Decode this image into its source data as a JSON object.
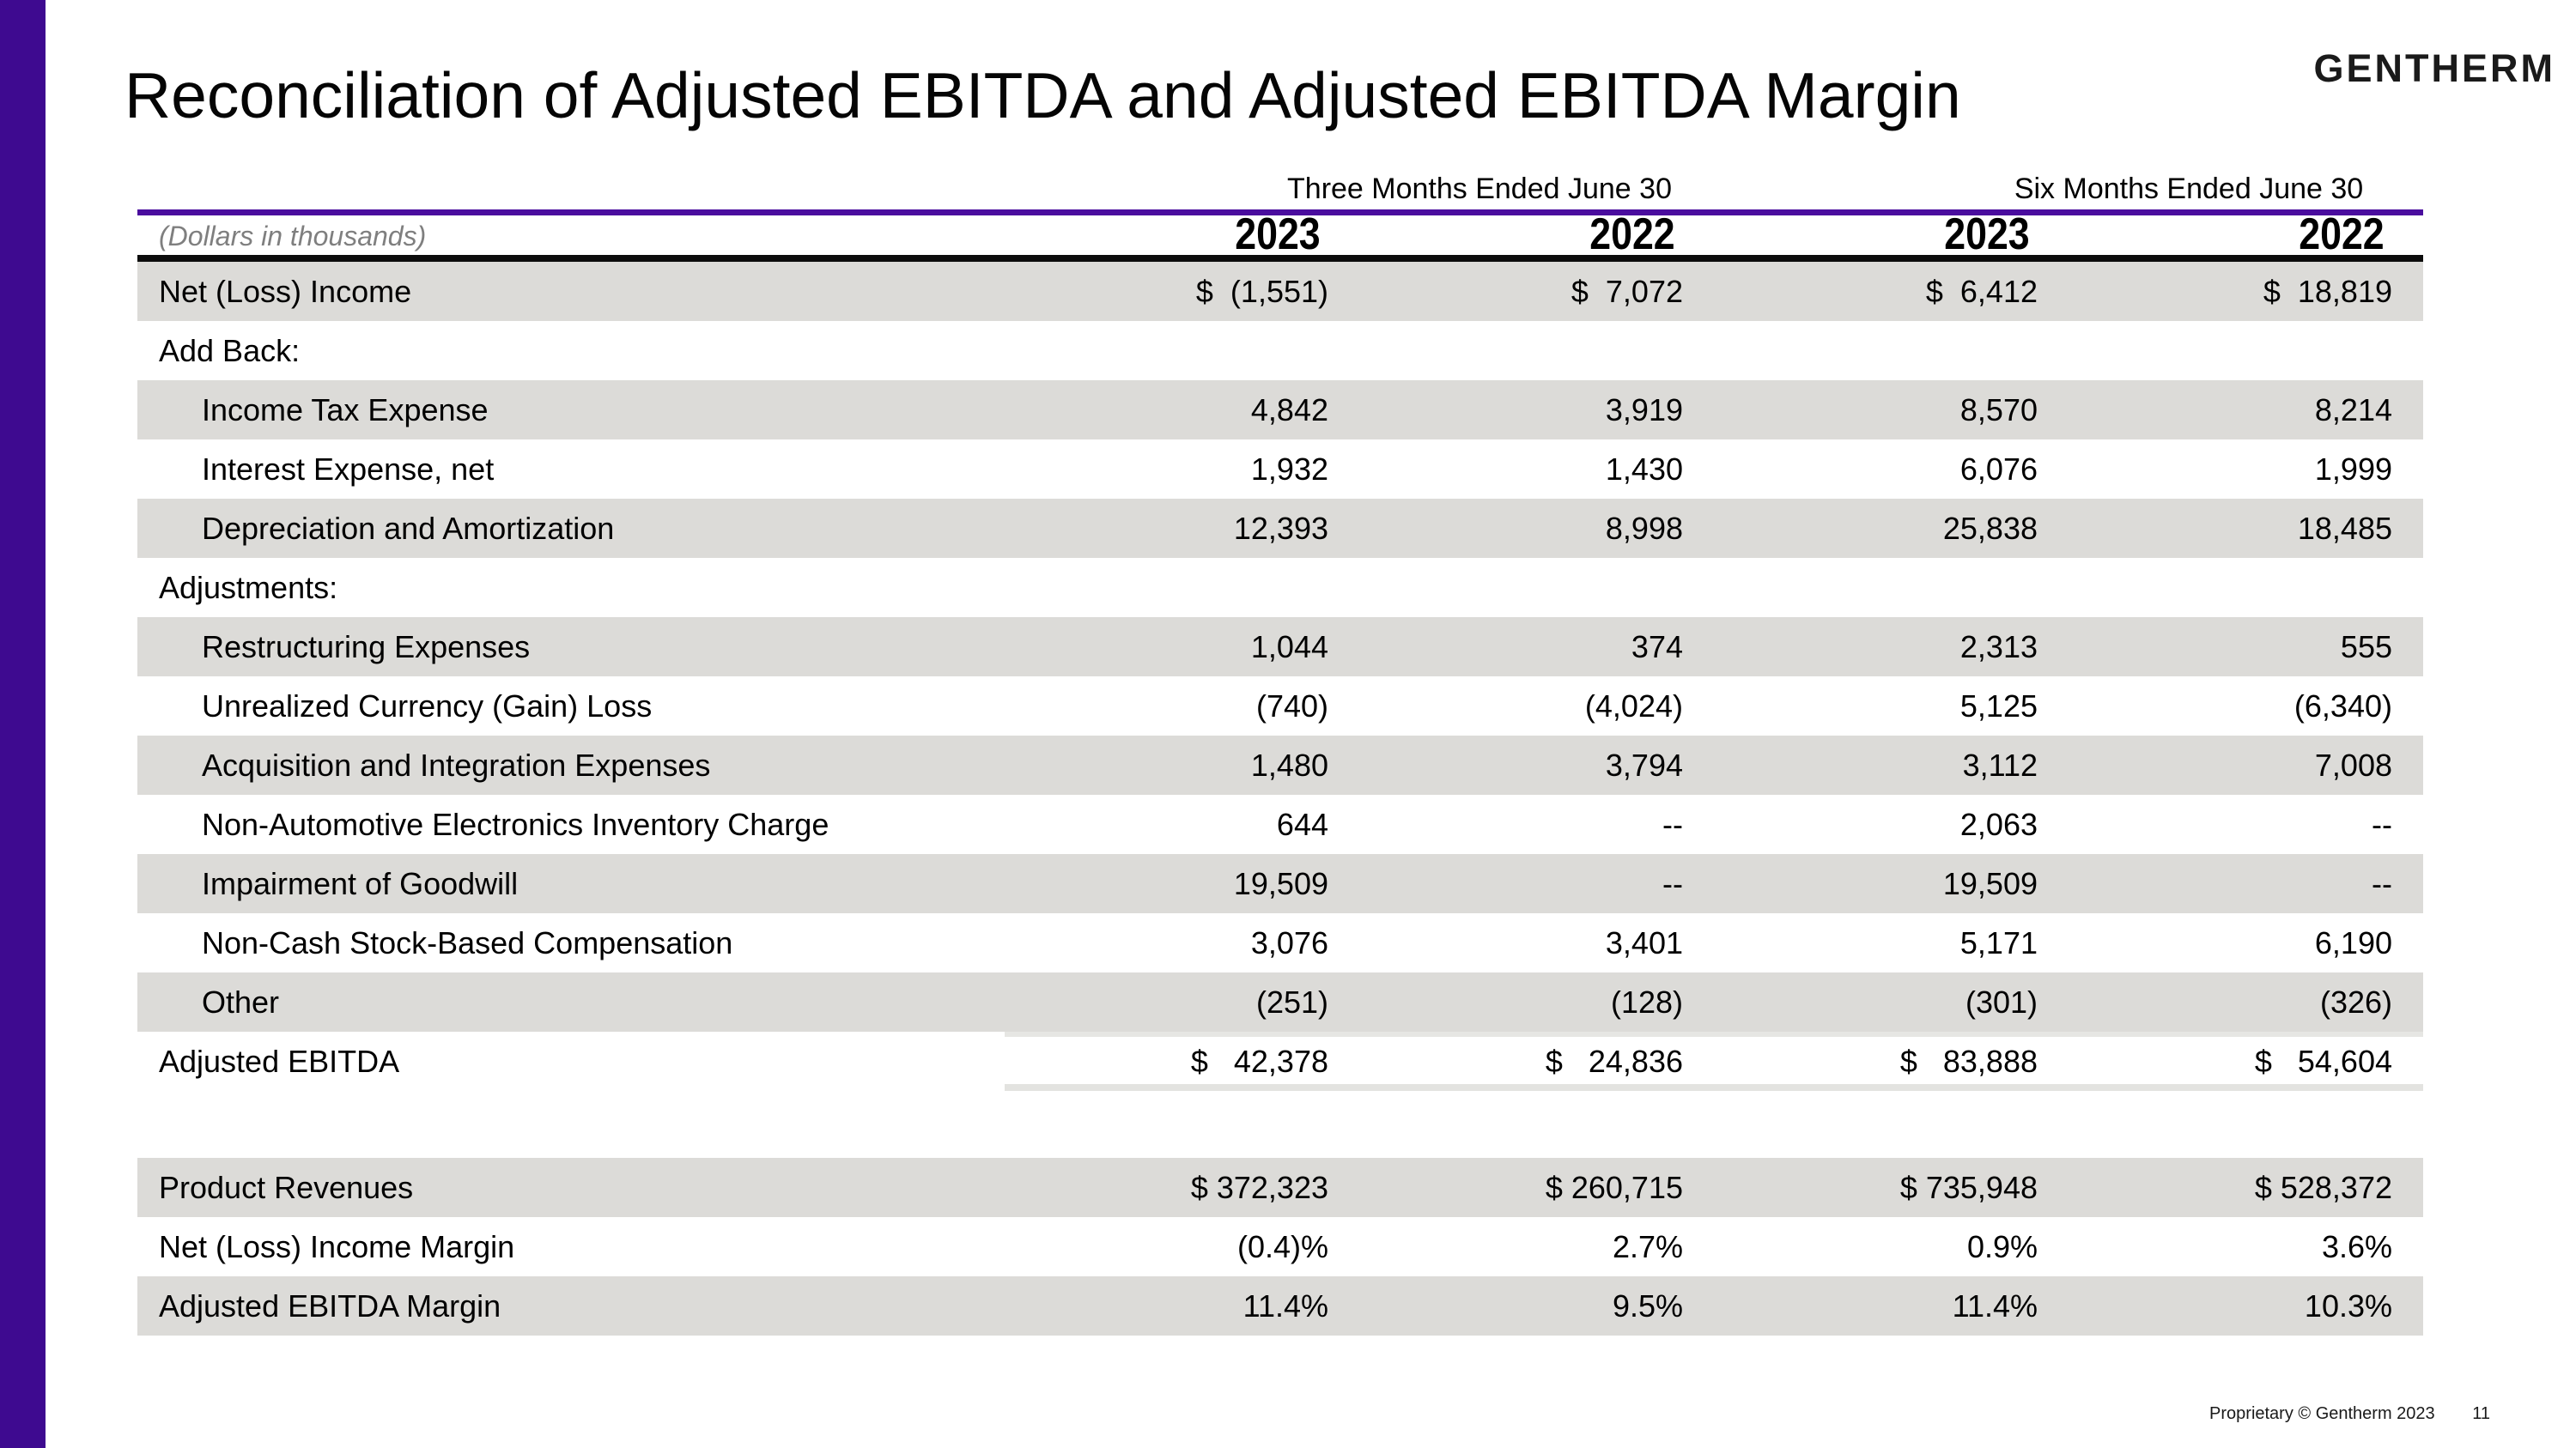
{
  "slide": {
    "title": "Reconciliation of Adjusted EBITDA and Adjusted EBITDA Margin",
    "brand": "GENTHERM",
    "footer": "Proprietary © Gentherm 2023",
    "page_number": "11"
  },
  "colors": {
    "accent_purple_bar": "#3E0A90",
    "accent_purple_rule": "#4A0D9E",
    "row_shade_gray": "#DCDBD8",
    "total_rule_gray": "#E6E6E3"
  },
  "table": {
    "units_note": "(Dollars in thousands)",
    "period_groups": [
      {
        "label": "Three Months Ended June 30",
        "years": [
          "2023",
          "2022"
        ]
      },
      {
        "label": "Six Months Ended June 30",
        "years": [
          "2023",
          "2022"
        ]
      }
    ],
    "rows": [
      {
        "label": "Net (Loss) Income",
        "values": [
          "$  (1,551)",
          "$  7,072",
          "$  6,412",
          "$  18,819"
        ],
        "shaded": true,
        "indent": false,
        "total": false,
        "gap_before": false
      },
      {
        "label": "Add Back:",
        "values": [
          "",
          "",
          "",
          ""
        ],
        "shaded": false,
        "indent": false,
        "total": false,
        "gap_before": false
      },
      {
        "label": "Income Tax Expense",
        "values": [
          "4,842",
          "3,919",
          "8,570",
          "8,214"
        ],
        "shaded": true,
        "indent": true,
        "total": false,
        "gap_before": false
      },
      {
        "label": "Interest Expense, net",
        "values": [
          "1,932",
          "1,430",
          "6,076",
          "1,999"
        ],
        "shaded": false,
        "indent": true,
        "total": false,
        "gap_before": false
      },
      {
        "label": "Depreciation and Amortization",
        "values": [
          "12,393",
          "8,998",
          "25,838",
          "18,485"
        ],
        "shaded": true,
        "indent": true,
        "total": false,
        "gap_before": false
      },
      {
        "label": "Adjustments:",
        "values": [
          "",
          "",
          "",
          ""
        ],
        "shaded": false,
        "indent": false,
        "total": false,
        "gap_before": false
      },
      {
        "label": "Restructuring Expenses",
        "values": [
          "1,044",
          "374",
          "2,313",
          "555"
        ],
        "shaded": true,
        "indent": true,
        "total": false,
        "gap_before": false
      },
      {
        "label": "Unrealized Currency (Gain) Loss",
        "values": [
          "(740)",
          "(4,024)",
          "5,125",
          "(6,340)"
        ],
        "shaded": false,
        "indent": true,
        "total": false,
        "gap_before": false
      },
      {
        "label": "Acquisition and Integration Expenses",
        "values": [
          "1,480",
          "3,794",
          "3,112",
          "7,008"
        ],
        "shaded": true,
        "indent": true,
        "total": false,
        "gap_before": false
      },
      {
        "label": "Non-Automotive Electronics Inventory Charge",
        "values": [
          "644",
          "--",
          "2,063",
          "--"
        ],
        "shaded": false,
        "indent": true,
        "total": false,
        "gap_before": false
      },
      {
        "label": "Impairment of Goodwill",
        "values": [
          "19,509",
          "--",
          "19,509",
          "--"
        ],
        "shaded": true,
        "indent": true,
        "total": false,
        "gap_before": false
      },
      {
        "label": "Non-Cash Stock-Based Compensation",
        "values": [
          "3,076",
          "3,401",
          "5,171",
          "6,190"
        ],
        "shaded": false,
        "indent": true,
        "total": false,
        "gap_before": false
      },
      {
        "label": "Other",
        "values": [
          "(251)",
          "(128)",
          "(301)",
          "(326)"
        ],
        "shaded": true,
        "indent": true,
        "total": false,
        "gap_before": false
      },
      {
        "label": "Adjusted EBITDA",
        "values": [
          "$   42,378",
          "$   24,836",
          "$   83,888",
          "$   54,604"
        ],
        "shaded": false,
        "indent": false,
        "total": true,
        "gap_before": false
      },
      {
        "label": "Product Revenues",
        "values": [
          "$ 372,323",
          "$ 260,715",
          "$ 735,948",
          "$ 528,372"
        ],
        "shaded": true,
        "indent": false,
        "total": false,
        "gap_before": true
      },
      {
        "label": "Net (Loss) Income Margin",
        "values": [
          "(0.4)%",
          "2.7%",
          "0.9%",
          "3.6%"
        ],
        "shaded": false,
        "indent": false,
        "total": false,
        "gap_before": false
      },
      {
        "label": "Adjusted EBITDA Margin",
        "values": [
          "11.4%",
          "9.5%",
          "11.4%",
          "10.3%"
        ],
        "shaded": true,
        "indent": false,
        "total": false,
        "gap_before": false
      }
    ]
  }
}
